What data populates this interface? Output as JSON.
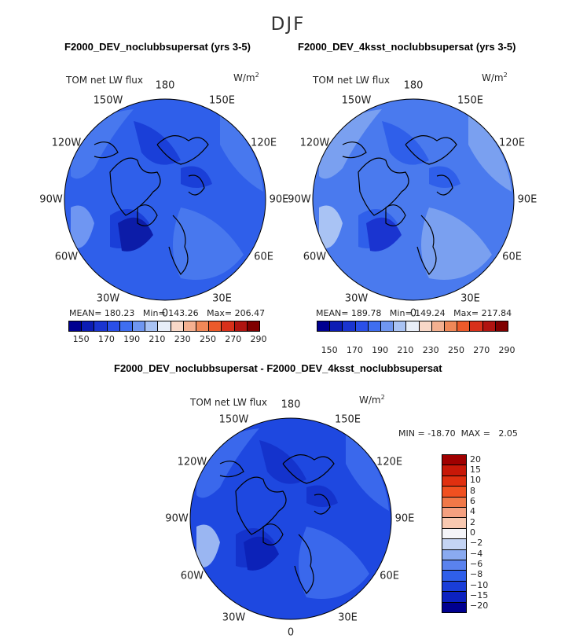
{
  "season": "DJF",
  "panels": [
    {
      "title": "F2000_DEV_noclubbsupersat (yrs 3-5)",
      "field": "TOM net LW flux",
      "units": "W/m",
      "units_sup": "2",
      "stats": {
        "mean_label": "MEAN=",
        "mean": "180.23",
        "min_label": "Min=",
        "min": "143.26",
        "max_label": "Max=",
        "max": "206.47"
      },
      "lon_labels": [
        "180",
        "150E",
        "120E",
        "90E",
        "60E",
        "30E",
        "0",
        "30W",
        "60W",
        "90W",
        "120W",
        "150W"
      ],
      "colorbar": {
        "colors": [
          "#000090",
          "#0c1cb4",
          "#1a34d0",
          "#2a4fe8",
          "#3f6ef0",
          "#6f96f0",
          "#a9c3f4",
          "#e8eef8",
          "#f8d8c8",
          "#f4b090",
          "#f08858",
          "#ec5a2a",
          "#d8301a",
          "#b01410",
          "#800000"
        ],
        "tick_labels": [
          "150",
          "170",
          "190",
          "210",
          "230",
          "250",
          "270",
          "290"
        ]
      },
      "palette": {
        "base": "#2f5fea",
        "lighter": "#4878ee",
        "lightest": "#6f96f2",
        "darker": "#1a3fd8",
        "darkest": "#0c1ca8"
      }
    },
    {
      "title": "F2000_DEV_4ksst_noclubbsupersat (yrs 3-5)",
      "field": "TOM net LW flux",
      "units": "W/m",
      "units_sup": "2",
      "stats": {
        "mean_label": "MEAN=",
        "mean": "189.78",
        "min_label": "Min=",
        "min": "149.24",
        "max_label": "Max=",
        "max": "217.84"
      },
      "lon_labels": [
        "180",
        "150E",
        "120E",
        "90E",
        "60E",
        "30E",
        "0",
        "30W",
        "60W",
        "90W",
        "120W",
        "150W"
      ],
      "colorbar": {
        "colors": [
          "#000090",
          "#0c1cb4",
          "#1a34d0",
          "#2a4fe8",
          "#3f6ef0",
          "#6f96f0",
          "#a9c3f4",
          "#e8eef8",
          "#f8d8c8",
          "#f4b090",
          "#f08858",
          "#ec5a2a",
          "#d8301a",
          "#b01410",
          "#800000"
        ],
        "tick_labels": [
          "150",
          "170",
          "190",
          "210",
          "230",
          "250",
          "270",
          "290"
        ]
      },
      "palette": {
        "base": "#4a7aee",
        "lighter": "#7aa0f0",
        "lightest": "#a9c3f4",
        "darker": "#2f5fea",
        "darkest": "#1a34d0"
      }
    }
  ],
  "diff": {
    "title": "F2000_DEV_noclubbsupersat - F2000_DEV_4ksst_noclubbsupersat",
    "field": "TOM net LW flux",
    "units": "W/m",
    "units_sup": "2",
    "min_label": "MIN =",
    "min": "-18.70",
    "max_label": "MAX =",
    "max": "2.05",
    "lon_labels": [
      "180",
      "150E",
      "120E",
      "90E",
      "60E",
      "30E",
      "0",
      "30W",
      "60W",
      "90W",
      "120W",
      "150W"
    ],
    "colorbar": {
      "colors": [
        "#a00000",
        "#c81808",
        "#e03010",
        "#f05020",
        "#f07848",
        "#f4a080",
        "#f8c8b0",
        "#f4f4f8",
        "#c4d4f4",
        "#8aaaf0",
        "#5a82ee",
        "#2f5fea",
        "#1a3ed8",
        "#0c22c0",
        "#000090"
      ],
      "labels": [
        "20",
        "15",
        "10",
        "8",
        "6",
        "4",
        "2",
        "0",
        "−2",
        "−4",
        "−6",
        "−8",
        "−10",
        "−15",
        "−20"
      ]
    },
    "palette": {
      "base": "#1e48e0",
      "lighter": "#3a68ec",
      "lightest": "#9ab6f2",
      "darker": "#1433cc",
      "darkest": "#0c22b8"
    }
  }
}
